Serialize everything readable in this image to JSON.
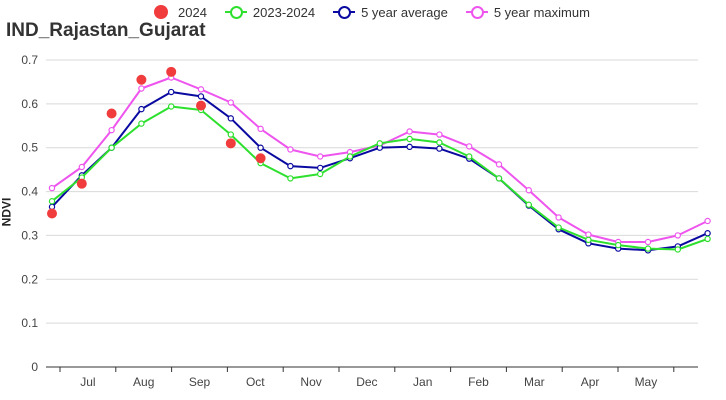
{
  "chart_data": {
    "type": "line",
    "title": "IND_Rajastan_Gujarat",
    "ylabel": "NDVI",
    "xlabel": "",
    "ylim": [
      0,
      0.7
    ],
    "y_ticks": [
      "0",
      "0.1",
      "0.2",
      "0.3",
      "0.4",
      "0.5",
      "0.6",
      "0.7"
    ],
    "x_tick_labels": [
      "Jul",
      "Aug",
      "Sep",
      "Oct",
      "Nov",
      "Dec",
      "Jan",
      "Feb",
      "Mar",
      "Apr",
      "May"
    ],
    "grid": "horizontal",
    "legend_position": "top",
    "series": [
      {
        "name": "2024",
        "style": "dots",
        "color": "#f03c3c",
        "values": [
          0.35,
          0.418,
          0.578,
          0.655,
          0.673,
          0.596,
          0.51,
          0.476
        ]
      },
      {
        "name": "2023-2024",
        "style": "line",
        "color": "#2ee02e",
        "values": [
          0.378,
          0.432,
          0.5,
          0.555,
          0.594,
          0.586,
          0.53,
          0.465,
          0.43,
          0.44,
          0.48,
          0.51,
          0.52,
          0.512,
          0.48,
          0.43,
          0.37,
          0.318,
          0.29,
          0.278,
          0.27,
          0.268,
          0.292
        ]
      },
      {
        "name": "5 year average",
        "style": "line",
        "color": "#0a0aa0",
        "values": [
          0.365,
          0.437,
          0.5,
          0.588,
          0.627,
          0.617,
          0.567,
          0.5,
          0.458,
          0.454,
          0.476,
          0.5,
          0.502,
          0.498,
          0.475,
          0.43,
          0.368,
          0.314,
          0.282,
          0.27,
          0.266,
          0.275,
          0.305
        ]
      },
      {
        "name": "5 year maximum",
        "style": "line",
        "color": "#ee55ee",
        "values": [
          0.408,
          0.456,
          0.54,
          0.635,
          0.66,
          0.633,
          0.603,
          0.543,
          0.496,
          0.48,
          0.49,
          0.505,
          0.537,
          0.53,
          0.503,
          0.462,
          0.403,
          0.341,
          0.302,
          0.285,
          0.285,
          0.3,
          0.333
        ]
      }
    ]
  }
}
